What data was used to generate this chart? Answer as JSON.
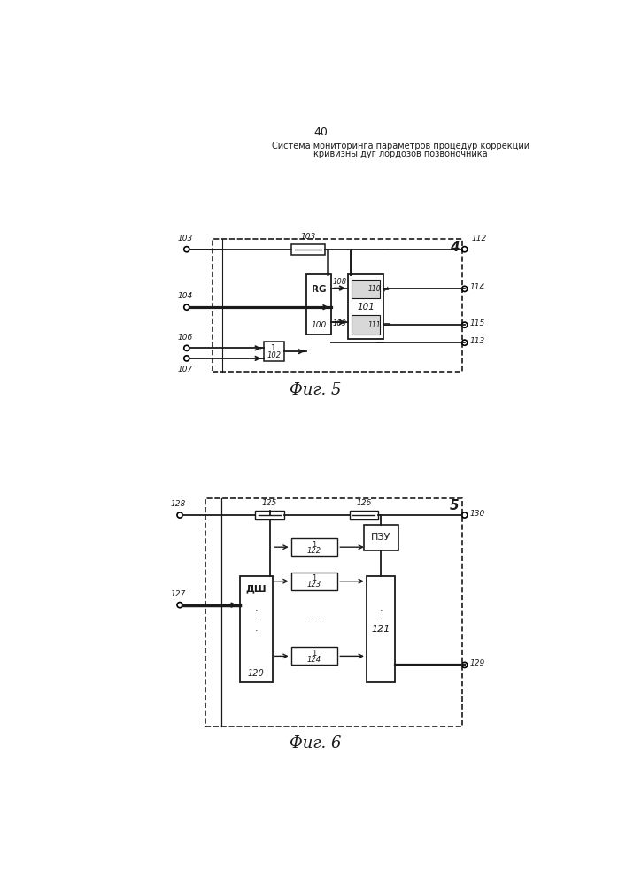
{
  "page_number": "40",
  "title_line1": "Система мониторинга параметров процедур коррекции",
  "title_line2": "кривизны дуг лордозов позвоночника",
  "fig5_label": "Φиг. 5",
  "fig6_label": "Φиг. 6",
  "bg_color": "#ffffff",
  "line_color": "#1a1a1a"
}
